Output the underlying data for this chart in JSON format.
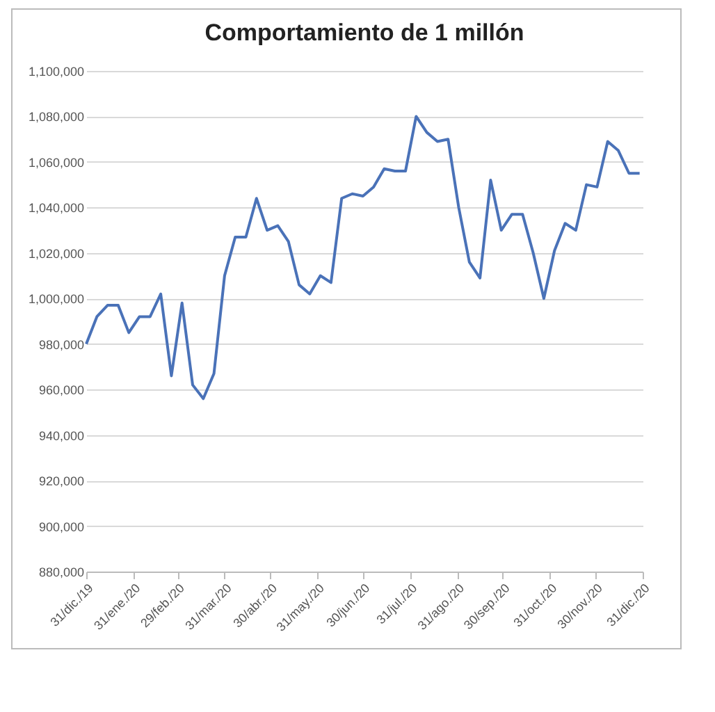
{
  "chart_data": {
    "type": "line",
    "title": "Comportamiento de 1 millón",
    "x": [
      "2019-12-31",
      "2020-01-07",
      "2020-01-14",
      "2020-01-21",
      "2020-01-28",
      "2020-02-04",
      "2020-02-11",
      "2020-02-18",
      "2020-02-25",
      "2020-03-03",
      "2020-03-10",
      "2020-03-17",
      "2020-03-24",
      "2020-03-31",
      "2020-04-07",
      "2020-04-14",
      "2020-04-21",
      "2020-04-28",
      "2020-05-05",
      "2020-05-12",
      "2020-05-19",
      "2020-05-26",
      "2020-06-02",
      "2020-06-09",
      "2020-06-16",
      "2020-06-23",
      "2020-06-30",
      "2020-07-07",
      "2020-07-14",
      "2020-07-21",
      "2020-07-28",
      "2020-08-04",
      "2020-08-11",
      "2020-08-18",
      "2020-08-25",
      "2020-09-01",
      "2020-09-08",
      "2020-09-15",
      "2020-09-22",
      "2020-09-29",
      "2020-10-06",
      "2020-10-13",
      "2020-10-20",
      "2020-10-27",
      "2020-11-03",
      "2020-11-10",
      "2020-11-17",
      "2020-11-24",
      "2020-12-01",
      "2020-12-08",
      "2020-12-15",
      "2020-12-22",
      "2020-12-29"
    ],
    "series": [
      {
        "color": "#4a72b8",
        "values": [
          980000,
          992000,
          997000,
          997000,
          985000,
          992000,
          992000,
          1002000,
          966000,
          998000,
          962000,
          956000,
          967000,
          1010000,
          1027000,
          1027000,
          1044000,
          1030000,
          1032000,
          1025000,
          1006000,
          1002000,
          1010000,
          1007000,
          1044000,
          1046000,
          1045000,
          1049000,
          1057000,
          1056000,
          1056000,
          1080000,
          1073000,
          1069000,
          1070000,
          1040000,
          1016000,
          1009000,
          1052000,
          1030000,
          1037000,
          1037000,
          1020000,
          1000000,
          1021000,
          1033000,
          1030000,
          1050000,
          1049000,
          1069000,
          1065000,
          1055000,
          1055000
        ]
      }
    ],
    "xlim": [
      "2019-12-31",
      "2020-12-31"
    ],
    "xticks": [
      {
        "value": "2019-12-31",
        "label": "31/dic./19"
      },
      {
        "value": "2020-01-31",
        "label": "31/ene./20"
      },
      {
        "value": "2020-02-29",
        "label": "29/feb./20"
      },
      {
        "value": "2020-03-31",
        "label": "31/mar./20"
      },
      {
        "value": "2020-04-30",
        "label": "30/abr./20"
      },
      {
        "value": "2020-05-31",
        "label": "31/may./20"
      },
      {
        "value": "2020-06-30",
        "label": "30/jun./20"
      },
      {
        "value": "2020-07-31",
        "label": "31/jul./20"
      },
      {
        "value": "2020-08-31",
        "label": "31/ago./20"
      },
      {
        "value": "2020-09-30",
        "label": "30/sep./20"
      },
      {
        "value": "2020-10-31",
        "label": "31/oct./20"
      },
      {
        "value": "2020-11-30",
        "label": "30/nov./20"
      },
      {
        "value": "2020-12-31",
        "label": "31/dic./20"
      }
    ],
    "ylim": [
      880000,
      1100000
    ],
    "yticks": [
      {
        "value": 880000,
        "label": "880,000"
      },
      {
        "value": 900000,
        "label": "900,000"
      },
      {
        "value": 920000,
        "label": "920,000"
      },
      {
        "value": 940000,
        "label": "940,000"
      },
      {
        "value": 960000,
        "label": "960,000"
      },
      {
        "value": 980000,
        "label": "980,000"
      },
      {
        "value": 1000000,
        "label": "1,000,000"
      },
      {
        "value": 1020000,
        "label": "1,020,000"
      },
      {
        "value": 1040000,
        "label": "1,040,000"
      },
      {
        "value": 1060000,
        "label": "1,060,000"
      },
      {
        "value": 1080000,
        "label": "1,080,000"
      },
      {
        "value": 1100000,
        "label": "1,100,000"
      }
    ],
    "grid": "y",
    "marker": "none",
    "line_style": "solid"
  }
}
